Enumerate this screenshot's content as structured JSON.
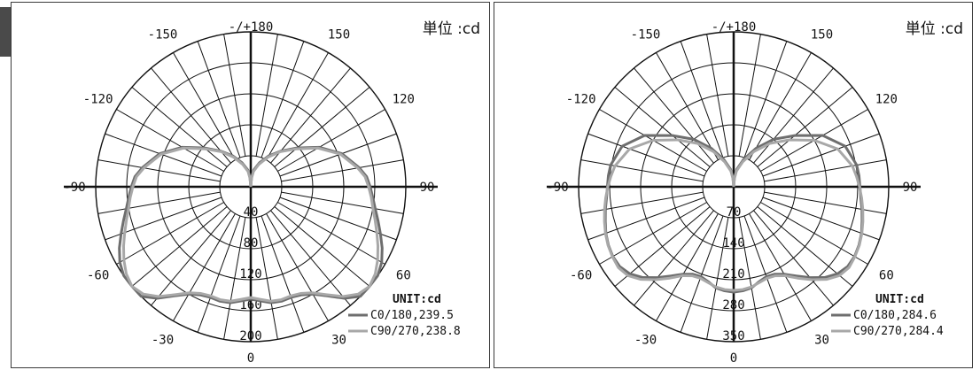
{
  "chart_data": [
    {
      "type": "polar",
      "unit_title": "単位 :cd",
      "unit_label": "UNIT:cd",
      "angle_labels": [
        "-/+180",
        "150",
        "120",
        "90",
        "60",
        "30",
        "0",
        "-30",
        "-60",
        "-90",
        "-120",
        "-150"
      ],
      "radial_ticks": [
        "40",
        "80",
        "120",
        "160",
        "200"
      ],
      "r_max": 200,
      "series": [
        {
          "name": "C0/180,239.5",
          "color": "#6e6e6e",
          "angles": [
            -180,
            -175,
            -170,
            -160,
            -150,
            -140,
            -130,
            -120,
            -110,
            -100,
            -95,
            -90,
            -85,
            -80,
            -75,
            -70,
            -65,
            -60,
            -55,
            -50,
            -45,
            -40,
            -35,
            -30,
            -25,
            -20,
            -15,
            -10,
            -5,
            0,
            5,
            10,
            15,
            20,
            25,
            30,
            35,
            40,
            45,
            50,
            55,
            60,
            65,
            70,
            75,
            80,
            85,
            90,
            95,
            100,
            110,
            120,
            130,
            140,
            150,
            160,
            170,
            175,
            180
          ],
          "values": [
            0,
            12,
            22,
            33,
            46,
            60,
            78,
            102,
            125,
            142,
            150,
            154,
            158,
            163,
            170,
            178,
            187,
            195,
            201,
            205,
            200,
            188,
            172,
            160,
            154,
            152,
            153,
            152,
            148,
            145,
            148,
            152,
            153,
            152,
            154,
            160,
            172,
            188,
            200,
            205,
            201,
            195,
            187,
            178,
            170,
            163,
            158,
            154,
            150,
            142,
            125,
            102,
            78,
            60,
            46,
            33,
            22,
            12,
            0
          ]
        },
        {
          "name": "C90/270,238.8",
          "color": "#a8a8a8",
          "angles": [
            -180,
            -175,
            -170,
            -160,
            -150,
            -140,
            -130,
            -120,
            -110,
            -100,
            -95,
            -90,
            -85,
            -80,
            -75,
            -70,
            -65,
            -60,
            -55,
            -50,
            -45,
            -40,
            -35,
            -30,
            -25,
            -20,
            -15,
            -10,
            -5,
            0,
            5,
            10,
            15,
            20,
            25,
            30,
            35,
            40,
            45,
            50,
            55,
            60,
            65,
            70,
            75,
            80,
            85,
            90,
            95,
            100,
            110,
            120,
            130,
            140,
            150,
            160,
            170,
            175,
            180
          ],
          "values": [
            0,
            11,
            20,
            31,
            44,
            59,
            76,
            100,
            123,
            140,
            148,
            152,
            156,
            160,
            166,
            173,
            181,
            189,
            196,
            200,
            196,
            185,
            170,
            158,
            152,
            150,
            151,
            150,
            146,
            143,
            146,
            150,
            151,
            150,
            152,
            158,
            170,
            185,
            196,
            200,
            196,
            189,
            181,
            173,
            166,
            160,
            156,
            152,
            148,
            140,
            123,
            100,
            76,
            59,
            44,
            31,
            20,
            11,
            0
          ]
        }
      ]
    },
    {
      "type": "polar",
      "unit_title": "単位 :cd",
      "unit_label": "UNIT:cd",
      "angle_labels": [
        "-/+180",
        "150",
        "120",
        "90",
        "60",
        "30",
        "0",
        "-30",
        "-60",
        "-90",
        "-120",
        "-150"
      ],
      "radial_ticks": [
        "70",
        "140",
        "210",
        "280",
        "350"
      ],
      "r_max": 350,
      "series": [
        {
          "name": "C0/180,284.6",
          "color": "#6e6e6e",
          "angles": [
            -180,
            -175,
            -170,
            -160,
            -150,
            -140,
            -130,
            -120,
            -110,
            -100,
            -95,
            -90,
            -85,
            -80,
            -75,
            -70,
            -65,
            -60,
            -55,
            -50,
            -45,
            -40,
            -35,
            -30,
            -25,
            -20,
            -15,
            -10,
            -5,
            0,
            5,
            10,
            15,
            20,
            25,
            30,
            35,
            40,
            45,
            50,
            55,
            60,
            65,
            70,
            75,
            80,
            85,
            90,
            95,
            100,
            110,
            120,
            130,
            140,
            150,
            160,
            170,
            175,
            180
          ],
          "values": [
            0,
            20,
            40,
            66,
            100,
            140,
            180,
            232,
            268,
            282,
            284,
            285,
            288,
            294,
            300,
            307,
            312,
            315,
            314,
            306,
            290,
            268,
            246,
            228,
            218,
            216,
            222,
            232,
            236,
            238,
            236,
            232,
            222,
            216,
            218,
            228,
            246,
            268,
            290,
            306,
            314,
            315,
            312,
            307,
            300,
            294,
            288,
            285,
            284,
            282,
            268,
            232,
            180,
            140,
            100,
            66,
            40,
            20,
            0
          ]
        },
        {
          "name": "C90/270,284.4",
          "color": "#a8a8a8",
          "angles": [
            -180,
            -175,
            -170,
            -160,
            -150,
            -140,
            -130,
            -120,
            -110,
            -100,
            -95,
            -90,
            -85,
            -80,
            -75,
            -70,
            -65,
            -60,
            -55,
            -50,
            -45,
            -40,
            -35,
            -30,
            -25,
            -20,
            -15,
            -10,
            -5,
            0,
            5,
            10,
            15,
            20,
            25,
            30,
            35,
            40,
            45,
            50,
            55,
            60,
            65,
            70,
            75,
            80,
            85,
            90,
            95,
            100,
            110,
            120,
            130,
            140,
            150,
            160,
            170,
            175,
            180
          ],
          "values": [
            0,
            18,
            36,
            60,
            92,
            128,
            165,
            210,
            250,
            272,
            278,
            284,
            290,
            296,
            302,
            308,
            313,
            316,
            318,
            312,
            296,
            274,
            252,
            232,
            222,
            220,
            224,
            230,
            233,
            234,
            233,
            230,
            224,
            220,
            222,
            232,
            252,
            274,
            296,
            312,
            318,
            316,
            313,
            308,
            302,
            296,
            290,
            284,
            278,
            272,
            250,
            210,
            165,
            128,
            92,
            60,
            36,
            18,
            0
          ]
        }
      ]
    }
  ]
}
